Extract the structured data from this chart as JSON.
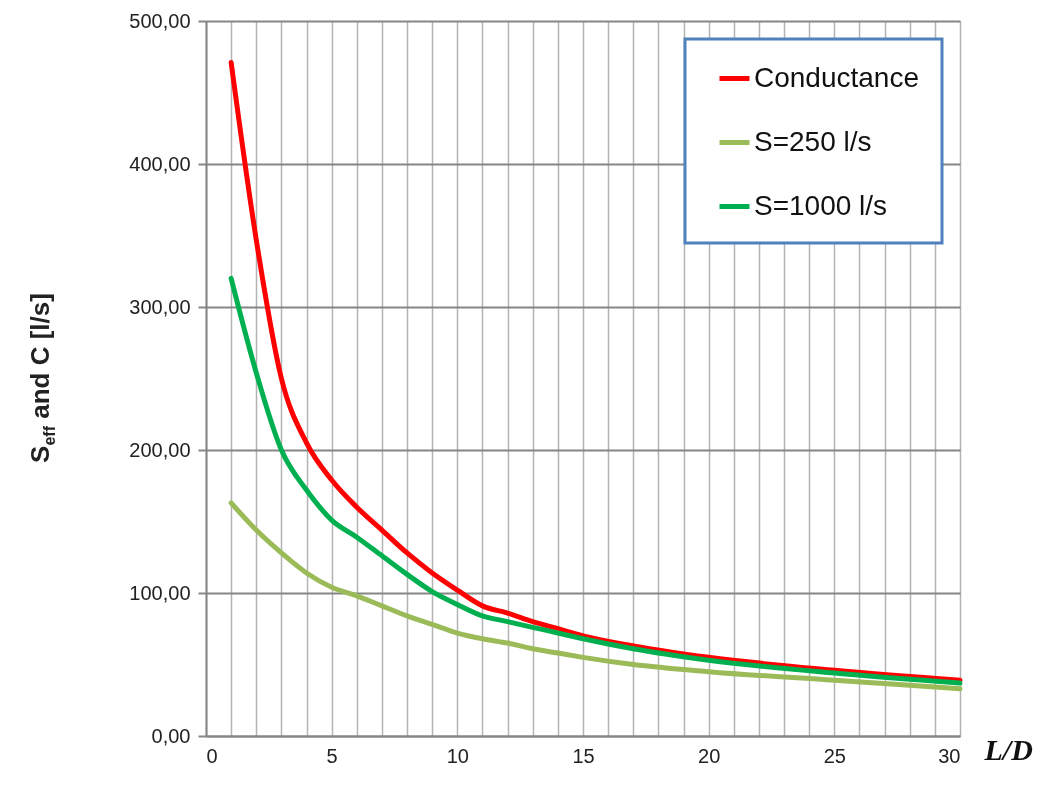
{
  "chart_data": {
    "type": "line",
    "xlabel": "L/D",
    "ylabel": "S$_{eff}$ and C [l/s]",
    "x": [
      1,
      2,
      3,
      4,
      5,
      6,
      7,
      8,
      9,
      10,
      11,
      12,
      13,
      14,
      15,
      17,
      20,
      25,
      30
    ],
    "series": [
      {
        "name": "Conductance",
        "color": "#ff0000",
        "values": [
          471,
          347,
          250,
          205,
          179,
          160,
          144,
          128,
          114,
          102,
          91,
          86,
          80,
          75,
          70,
          63,
          55,
          46,
          39
        ]
      },
      {
        "name": "S=250 l/s",
        "color": "#9bbb59",
        "values": [
          163,
          144,
          128,
          114,
          104,
          98,
          91,
          84,
          78,
          72,
          68,
          65,
          61,
          58,
          55,
          50,
          45,
          39,
          33
        ]
      },
      {
        "name": "S=1000 l/s",
        "color": "#00b050",
        "values": [
          320,
          254,
          200,
          172,
          151,
          139,
          126,
          113,
          101,
          92,
          84,
          80,
          76,
          72,
          68,
          61,
          53,
          44,
          37
        ]
      }
    ],
    "xlim": [
      0,
      30
    ],
    "xticks": [
      0,
      {
        "value": 1,
        "label": null
      },
      {
        "value": 2,
        "label": null
      },
      {
        "value": 3,
        "label": null
      },
      {
        "value": 4,
        "label": null
      },
      5,
      {
        "value": 6,
        "label": null
      },
      {
        "value": 7,
        "label": null
      },
      {
        "value": 8,
        "label": null
      },
      {
        "value": 9,
        "label": null
      },
      10,
      {
        "value": 11,
        "label": null
      },
      {
        "value": 12,
        "label": null
      },
      {
        "value": 13,
        "label": null
      },
      {
        "value": 14,
        "label": null
      },
      15,
      {
        "value": 16,
        "label": null
      },
      {
        "value": 17,
        "label": null
      },
      {
        "value": 18,
        "label": null
      },
      {
        "value": 19,
        "label": null
      },
      20,
      {
        "value": 21,
        "label": null
      },
      {
        "value": 22,
        "label": null
      },
      {
        "value": 23,
        "label": null
      },
      {
        "value": 24,
        "label": null
      },
      25,
      {
        "value": 26,
        "label": null
      },
      {
        "value": 27,
        "label": null
      },
      {
        "value": 28,
        "label": null
      },
      {
        "value": 29,
        "label": null
      },
      30
    ],
    "ylim": [
      0,
      500
    ],
    "yticks": [
      {
        "value": 0,
        "label": "0,00"
      },
      {
        "value": 100,
        "label": "100,00"
      },
      {
        "value": 200,
        "label": "200,00"
      },
      {
        "value": 300,
        "label": "300,00"
      },
      {
        "value": 400,
        "label": "400,00"
      },
      {
        "value": 500,
        "label": "500,00"
      }
    ],
    "grid": true,
    "legend": "top right",
    "marker": "none",
    "line_style": "solid"
  }
}
